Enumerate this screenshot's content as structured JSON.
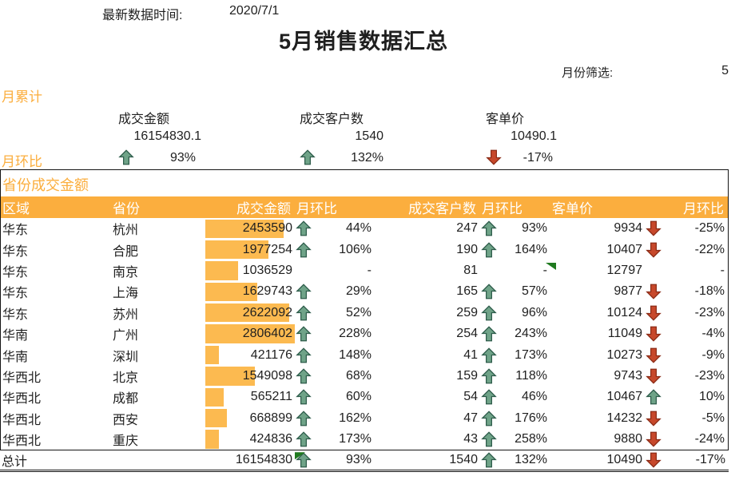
{
  "colors": {
    "accent_orange": "#FBAE3E",
    "databar_orange": "#FCBA50",
    "up_green": "#6FA388",
    "down_red": "#C7482B",
    "header_text": "#FFFFFF",
    "indicator_green": "#1F7A1F"
  },
  "header": {
    "updated_label": "最新数据时间:",
    "updated_value": "2020/7/1",
    "title": "5月销售数据汇总",
    "filter_label": "月份筛选:",
    "filter_value": "5"
  },
  "kpi": {
    "section_label": "月累计",
    "mom_label": "月环比",
    "metrics": [
      {
        "label": "成交金额",
        "value": "16154830.1",
        "mom": "93%",
        "dir": "up"
      },
      {
        "label": "成交客户数",
        "value": "1540",
        "mom": "132%",
        "dir": "up"
      },
      {
        "label": "客单价",
        "value": "10490.1",
        "mom": "-17%",
        "dir": "down"
      }
    ]
  },
  "table": {
    "section_label": "省份成交金额",
    "headers": [
      "区域",
      "省份",
      "成交金额",
      "月环比",
      "成交客户数",
      "月环比",
      "客单价",
      "月环比"
    ],
    "max_amount": 2806402,
    "rows": [
      {
        "region": "华东",
        "province": "杭州",
        "amount": 2453590,
        "amount_mom": "44%",
        "amount_dir": "up",
        "customers": 247,
        "cust_mom": "93%",
        "cust_dir": "up",
        "price": 9934,
        "price_mom": "-25%",
        "price_dir": "down",
        "flag": null
      },
      {
        "region": "华东",
        "province": "合肥",
        "amount": 1977254,
        "amount_mom": "106%",
        "amount_dir": "up",
        "customers": 190,
        "cust_mom": "164%",
        "cust_dir": "up",
        "price": 10407,
        "price_mom": "-22%",
        "price_dir": "down",
        "flag": null
      },
      {
        "region": "华东",
        "province": "南京",
        "amount": 1036529,
        "amount_mom": "-",
        "amount_dir": "none",
        "customers": 81,
        "cust_mom": "-",
        "cust_dir": "none",
        "price": 12797,
        "price_mom": "-",
        "price_dir": "none",
        "flag": "cust-mom-top-right"
      },
      {
        "region": "华东",
        "province": "上海",
        "amount": 1629743,
        "amount_mom": "29%",
        "amount_dir": "up",
        "customers": 165,
        "cust_mom": "57%",
        "cust_dir": "up",
        "price": 9877,
        "price_mom": "-18%",
        "price_dir": "down",
        "flag": null
      },
      {
        "region": "华东",
        "province": "苏州",
        "amount": 2622092,
        "amount_mom": "52%",
        "amount_dir": "up",
        "customers": 259,
        "cust_mom": "96%",
        "cust_dir": "up",
        "price": 10124,
        "price_mom": "-23%",
        "price_dir": "down",
        "flag": null
      },
      {
        "region": "华南",
        "province": "广州",
        "amount": 2806402,
        "amount_mom": "228%",
        "amount_dir": "up",
        "customers": 254,
        "cust_mom": "243%",
        "cust_dir": "up",
        "price": 11049,
        "price_mom": "-4%",
        "price_dir": "down",
        "flag": null
      },
      {
        "region": "华南",
        "province": "深圳",
        "amount": 421176,
        "amount_mom": "148%",
        "amount_dir": "up",
        "customers": 41,
        "cust_mom": "173%",
        "cust_dir": "up",
        "price": 10273,
        "price_mom": "-9%",
        "price_dir": "down",
        "flag": null
      },
      {
        "region": "华西北",
        "province": "北京",
        "amount": 1549098,
        "amount_mom": "68%",
        "amount_dir": "up",
        "customers": 159,
        "cust_mom": "118%",
        "cust_dir": "up",
        "price": 9743,
        "price_mom": "-23%",
        "price_dir": "down",
        "flag": null
      },
      {
        "region": "华西北",
        "province": "成都",
        "amount": 565211,
        "amount_mom": "60%",
        "amount_dir": "up",
        "customers": 54,
        "cust_mom": "46%",
        "cust_dir": "up",
        "price": 10467,
        "price_mom": "10%",
        "price_dir": "up",
        "flag": null
      },
      {
        "region": "华西北",
        "province": "西安",
        "amount": 668899,
        "amount_mom": "162%",
        "amount_dir": "up",
        "customers": 47,
        "cust_mom": "176%",
        "cust_dir": "up",
        "price": 14232,
        "price_mom": "-5%",
        "price_dir": "down",
        "flag": null
      },
      {
        "region": "华西北",
        "province": "重庆",
        "amount": 424836,
        "amount_mom": "173%",
        "amount_dir": "up",
        "customers": 43,
        "cust_mom": "258%",
        "cust_dir": "up",
        "price": 9880,
        "price_mom": "-24%",
        "price_dir": "down",
        "flag": null
      }
    ],
    "total": {
      "label": "总计",
      "amount": "16154830",
      "amount_mom": "93%",
      "amount_dir": "up",
      "customers": "1540",
      "cust_mom": "132%",
      "cust_dir": "up",
      "price": "10490",
      "price_mom": "-17%",
      "price_dir": "down",
      "flag": "amount-mom-top-left"
    }
  }
}
